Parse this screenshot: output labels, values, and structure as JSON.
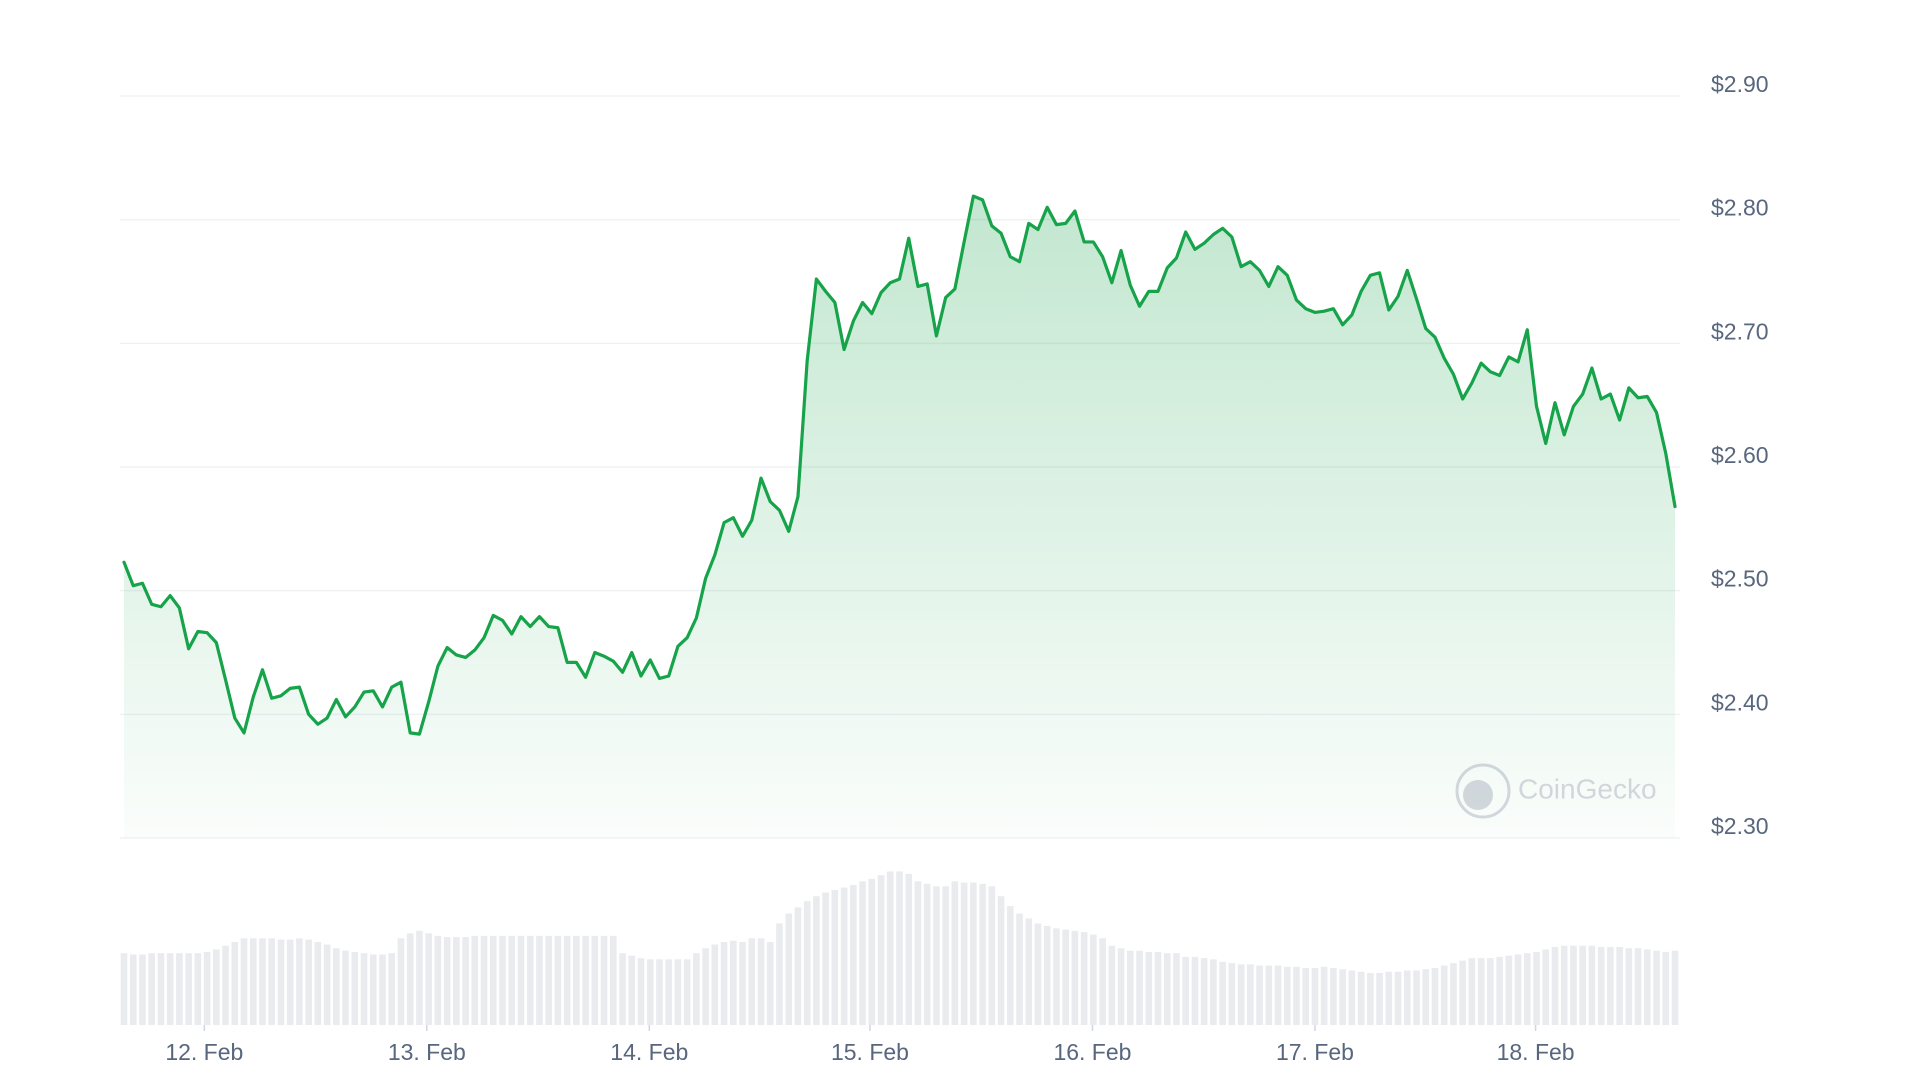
{
  "chart_data": {
    "type": "line",
    "color": "#16a34a",
    "watermark": "CoinGecko",
    "grid": true,
    "xlim": [
      0,
      168
    ],
    "xticks": [
      {
        "value": 8.7,
        "label": "12. Feb"
      },
      {
        "value": 32.8,
        "label": "13. Feb"
      },
      {
        "value": 56.9,
        "label": "14. Feb"
      },
      {
        "value": 80.8,
        "label": "15. Feb"
      },
      {
        "value": 104.9,
        "label": "16. Feb"
      },
      {
        "value": 129.0,
        "label": "17. Feb"
      },
      {
        "value": 152.9,
        "label": "18. Feb"
      }
    ],
    "ylim": [
      2.3,
      2.9
    ],
    "yticks": [
      {
        "value": 2.3,
        "label": "$2.30"
      },
      {
        "value": 2.4,
        "label": "$2.40"
      },
      {
        "value": 2.5,
        "label": "$2.50"
      },
      {
        "value": 2.6,
        "label": "$2.60"
      },
      {
        "value": 2.7,
        "label": "$2.70"
      },
      {
        "value": 2.8,
        "label": "$2.80"
      },
      {
        "value": 2.9,
        "label": "$2.90"
      }
    ],
    "values": [
      2.523,
      2.504,
      2.506,
      2.489,
      2.487,
      2.496,
      2.486,
      2.453,
      2.467,
      2.466,
      2.458,
      2.428,
      2.397,
      2.385,
      2.414,
      2.436,
      2.413,
      2.415,
      2.421,
      2.422,
      2.4,
      2.392,
      2.397,
      2.412,
      2.398,
      2.406,
      2.418,
      2.419,
      2.406,
      2.422,
      2.426,
      2.385,
      2.384,
      2.41,
      2.439,
      2.454,
      2.448,
      2.446,
      2.452,
      2.462,
      2.48,
      2.476,
      2.465,
      2.479,
      2.471,
      2.479,
      2.471,
      2.47,
      2.442,
      2.442,
      2.43,
      2.45,
      2.447,
      2.443,
      2.434,
      2.45,
      2.431,
      2.444,
      2.429,
      2.431,
      2.455,
      2.462,
      2.478,
      2.51,
      2.529,
      2.555,
      2.559,
      2.544,
      2.557,
      2.591,
      2.572,
      2.565,
      2.548,
      2.576,
      2.686,
      2.752,
      2.742,
      2.733,
      2.695,
      2.718,
      2.733,
      2.724,
      2.741,
      2.749,
      2.752,
      2.785,
      2.746,
      2.748,
      2.706,
      2.737,
      2.744,
      2.782,
      2.819,
      2.816,
      2.795,
      2.789,
      2.77,
      2.766,
      2.797,
      2.792,
      2.81,
      2.796,
      2.797,
      2.807,
      2.782,
      2.782,
      2.77,
      2.749,
      2.775,
      2.747,
      2.73,
      2.742,
      2.742,
      2.761,
      2.769,
      2.79,
      2.776,
      2.781,
      2.788,
      2.793,
      2.786,
      2.762,
      2.766,
      2.759,
      2.746,
      2.762,
      2.755,
      2.735,
      2.728,
      2.725,
      2.726,
      2.728,
      2.715,
      2.723,
      2.742,
      2.755,
      2.757,
      2.727,
      2.738,
      2.759,
      2.736,
      2.712,
      2.705,
      2.688,
      2.675,
      2.655,
      2.668,
      2.684,
      2.677,
      2.674,
      2.689,
      2.685,
      2.711,
      2.649,
      2.619,
      2.652,
      2.626,
      2.649,
      2.659,
      2.68,
      2.655,
      2.659,
      2.638,
      2.664,
      2.656,
      2.657,
      2.644,
      2.611,
      2.568
    ],
    "volume": {
      "color": "#e9ebef",
      "ylim": [
        0,
        130
      ],
      "values": [
        58,
        57,
        57,
        58,
        58,
        58,
        58,
        58,
        58,
        59,
        61,
        64,
        67,
        70,
        70,
        70,
        70,
        69,
        69,
        70,
        69,
        67,
        65,
        62,
        60,
        59,
        58,
        57,
        57,
        58,
        70,
        74,
        76,
        74,
        72,
        71,
        71,
        71,
        72,
        72,
        72,
        72,
        72,
        72,
        72,
        72,
        72,
        72,
        72,
        72,
        72,
        72,
        72,
        72,
        58,
        56,
        54,
        53,
        53,
        53,
        53,
        53,
        58,
        62,
        65,
        67,
        68,
        67,
        70,
        70,
        67,
        82,
        90,
        95,
        100,
        104,
        107,
        109,
        111,
        113,
        116,
        118,
        121,
        124,
        124,
        122,
        116,
        114,
        112,
        112,
        116,
        115,
        115,
        114,
        112,
        104,
        96,
        90,
        86,
        82,
        80,
        78,
        77,
        76,
        75,
        73,
        70,
        64,
        62,
        60,
        60,
        59,
        59,
        58,
        58,
        55,
        55,
        54,
        53,
        51,
        50,
        49,
        49,
        48,
        48,
        48,
        47,
        47,
        46,
        46,
        47,
        46,
        45,
        44,
        43,
        42,
        42,
        43,
        43,
        44,
        44,
        45,
        46,
        48,
        50,
        52,
        54,
        54,
        54,
        55,
        56,
        57,
        58,
        59,
        61,
        63,
        64,
        64,
        64,
        64,
        63,
        63,
        63,
        62,
        62,
        61,
        60,
        59,
        60
      ]
    }
  }
}
